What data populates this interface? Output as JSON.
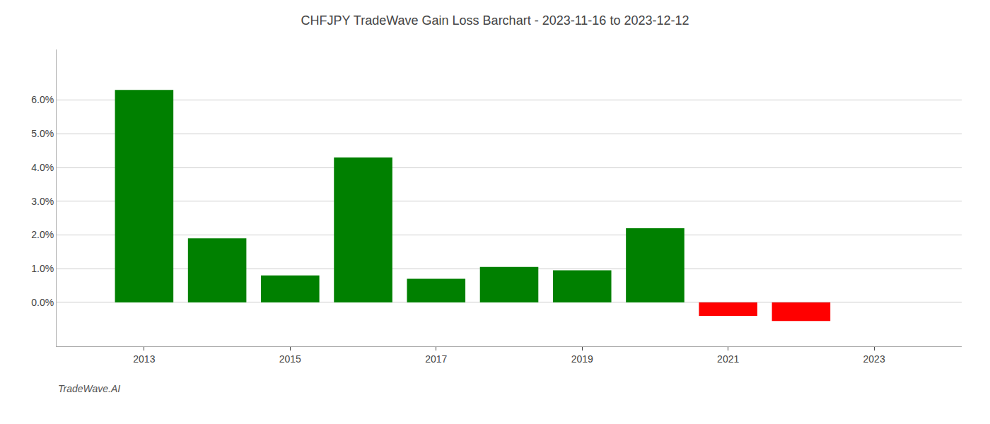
{
  "chart_data": {
    "type": "bar",
    "title": "CHFJPY TradeWave Gain Loss Barchart - 2023-11-16 to 2023-12-12",
    "annotations": [
      "TradeWave.AI"
    ],
    "x": [
      2013,
      2014,
      2015,
      2016,
      2017,
      2018,
      2019,
      2020,
      2021,
      2022
    ],
    "values": [
      0.063,
      0.019,
      0.008,
      0.043,
      0.007,
      0.0105,
      0.0095,
      0.022,
      -0.004,
      -0.0055
    ],
    "colors": [
      "#008000",
      "#008000",
      "#008000",
      "#008000",
      "#008000",
      "#008000",
      "#008000",
      "#008000",
      "#ff0000",
      "#ff0000"
    ],
    "xlim": [
      2011.8,
      2024.2
    ],
    "xticks": [
      2013,
      2015,
      2017,
      2019,
      2021,
      2023
    ],
    "ylim": [
      -0.013,
      0.075
    ],
    "yticks": [
      {
        "value": 0.0,
        "label": "0.0%"
      },
      {
        "value": 0.01,
        "label": "1.0%"
      },
      {
        "value": 0.02,
        "label": "2.0%"
      },
      {
        "value": 0.03,
        "label": "3.0%"
      },
      {
        "value": 0.04,
        "label": "4.0%"
      },
      {
        "value": 0.05,
        "label": "5.0%"
      },
      {
        "value": 0.06,
        "label": "6.0%"
      }
    ],
    "grid": true
  }
}
